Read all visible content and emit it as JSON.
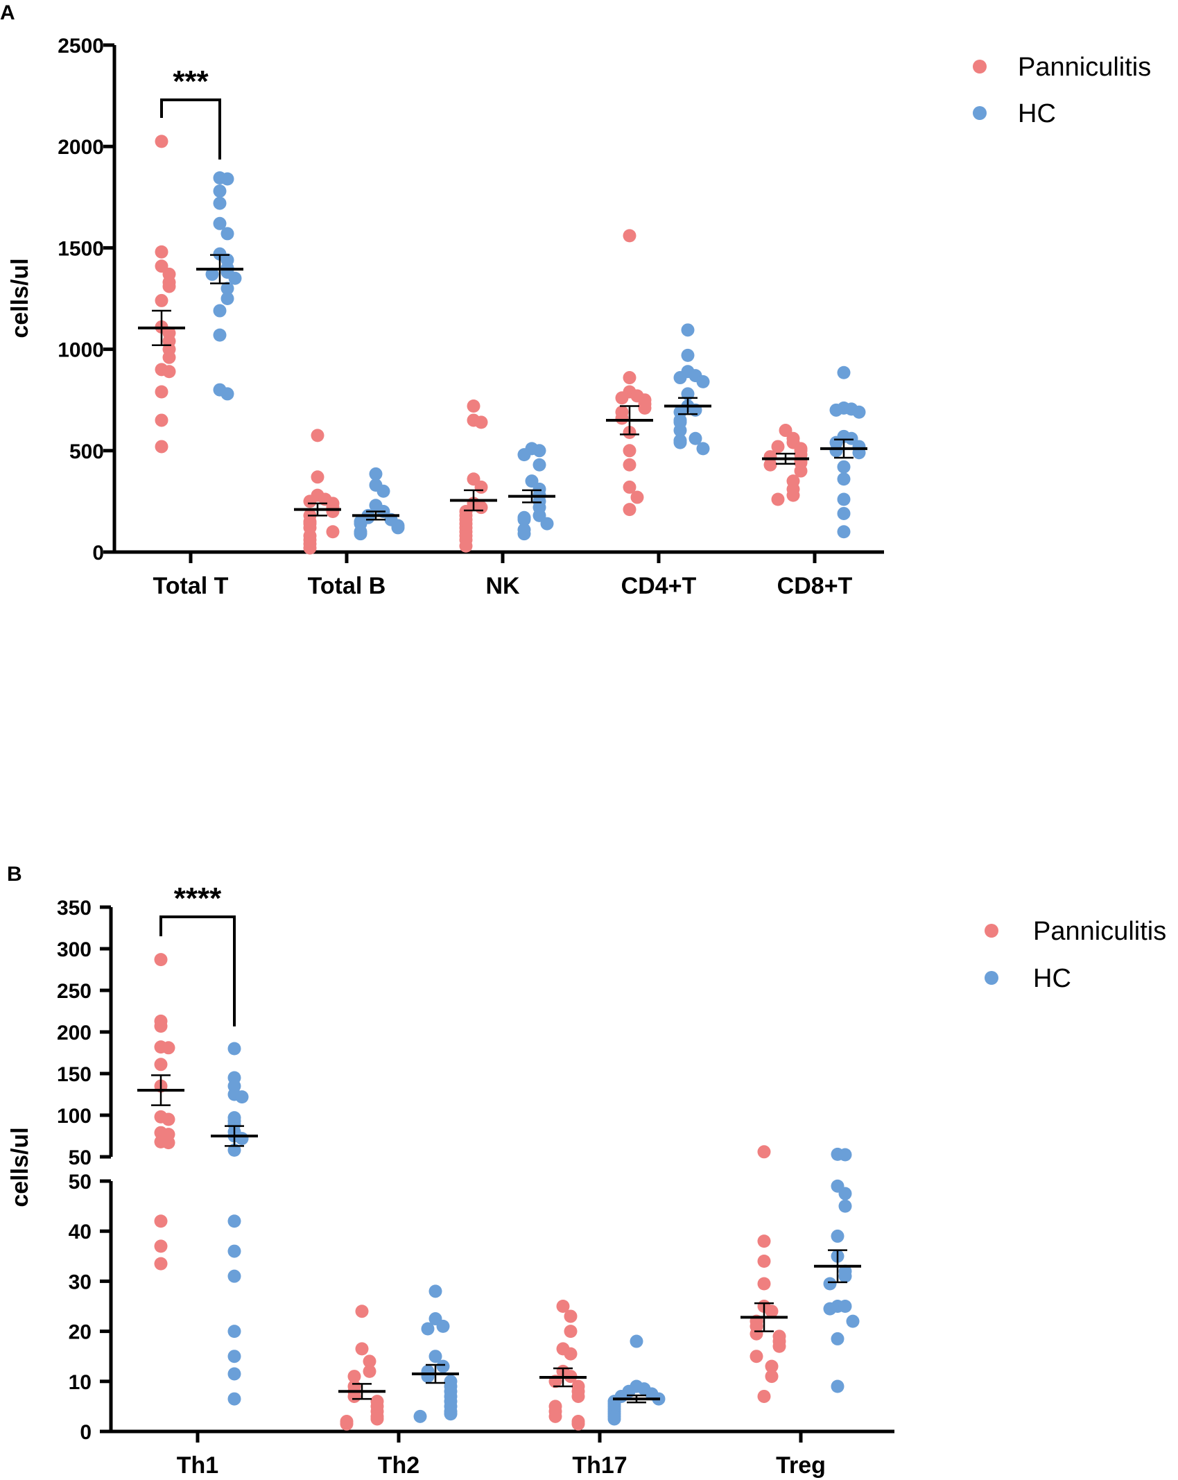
{
  "colors": {
    "panniculitis": "#ef7f7f",
    "hc": "#6a9fd8",
    "axis": "#000000"
  },
  "chart_data": [
    {
      "panel": "A",
      "type": "scatter",
      "ylabel": "cells/ul",
      "ylim": [
        0,
        2500
      ],
      "yticks": [
        0,
        500,
        1000,
        1500,
        2000,
        2500
      ],
      "categories": [
        "Total T",
        "Total B",
        "NK",
        "CD4+T",
        "CD8+T"
      ],
      "legend": {
        "position": "top-right",
        "entries": [
          "Panniculitis",
          "HC"
        ]
      },
      "significance": [
        {
          "category": "Total T",
          "label": "***"
        }
      ],
      "series": [
        {
          "name": "Panniculitis",
          "mean": [
            1105,
            210,
            255,
            650,
            460
          ],
          "sem": [
            85,
            30,
            50,
            70,
            25
          ],
          "values": [
            [
              2025,
              1480,
              1410,
              1370,
              1330,
              1310,
              1240,
              1110,
              1080,
              1040,
              1000,
              960,
              900,
              890,
              790,
              650,
              520
            ],
            [
              575,
              370,
              280,
              260,
              250,
              240,
              220,
              200,
              180,
              150,
              140,
              120,
              100,
              80,
              60,
              40,
              20
            ],
            [
              720,
              650,
              640,
              360,
              320,
              240,
              220,
              200,
              180,
              160,
              140,
              120,
              100,
              80,
              60,
              30
            ],
            [
              1560,
              860,
              790,
              770,
              760,
              750,
              730,
              710,
              690,
              660,
              590,
              500,
              430,
              320,
              270,
              210
            ],
            [
              600,
              560,
              540,
              520,
              510,
              500,
              480,
              470,
              450,
              440,
              430,
              400,
              350,
              310,
              280,
              260
            ]
          ]
        },
        {
          "name": "HC",
          "mean": [
            1395,
            180,
            275,
            720,
            510
          ],
          "sem": [
            70,
            20,
            30,
            40,
            45
          ],
          "values": [
            [
              1845,
              1840,
              1780,
              1720,
              1620,
              1570,
              1470,
              1440,
              1400,
              1380,
              1370,
              1350,
              1300,
              1250,
              1190,
              1070,
              800,
              780
            ],
            [
              385,
              330,
              300,
              230,
              200,
              180,
              170,
              160,
              150,
              140,
              130,
              120,
              100,
              90
            ],
            [
              510,
              500,
              480,
              430,
              350,
              310,
              280,
              250,
              220,
              180,
              170,
              160,
              140,
              110,
              90
            ],
            [
              1095,
              970,
              890,
              870,
              860,
              840,
              780,
              720,
              700,
              690,
              650,
              640,
              600,
              560,
              550,
              540,
              510
            ],
            [
              885,
              710,
              705,
              700,
              690,
              570,
              560,
              540,
              520,
              500,
              490,
              420,
              360,
              260,
              190,
              100
            ]
          ]
        }
      ]
    },
    {
      "panel": "B",
      "type": "scatter",
      "ylabel": "cells/ul",
      "axis_break": [
        50,
        50
      ],
      "ylim_lower": [
        0,
        50
      ],
      "ylim_upper": [
        50,
        350
      ],
      "yticks_lower": [
        0,
        10,
        20,
        30,
        40,
        50
      ],
      "yticks_upper": [
        50,
        100,
        150,
        200,
        250,
        300,
        350
      ],
      "categories": [
        "Th1",
        "Th2",
        "Th17",
        "Treg"
      ],
      "legend": {
        "position": "top-right",
        "entries": [
          "Panniculitis",
          "HC"
        ]
      },
      "significance": [
        {
          "category": "Th1",
          "label": "****"
        }
      ],
      "series": [
        {
          "name": "Panniculitis",
          "mean": [
            130,
            8,
            10.8,
            22.8
          ],
          "sem": [
            18,
            1.5,
            1.8,
            2.8
          ],
          "values": [
            [
              287,
              213,
              207,
              182,
              181,
              161,
              135,
              98,
              95,
              79,
              77,
              68,
              67,
              42,
              37,
              33.5
            ],
            [
              24,
              16.5,
              14,
              12,
              11,
              9,
              8,
              7,
              6,
              5,
              4,
              3,
              2.5,
              2,
              1.5
            ],
            [
              25,
              23,
              20,
              16.5,
              15.5,
              12,
              11,
              10,
              9,
              8,
              7,
              5,
              4,
              3,
              2,
              1.5
            ],
            [
              56,
              38,
              34,
              29.5,
              25,
              24,
              22,
              21,
              19.5,
              19,
              18,
              17,
              15,
              13,
              11,
              7
            ]
          ]
        },
        {
          "name": "HC",
          "mean": [
            75,
            11.5,
            6.5,
            33
          ],
          "sem": [
            12,
            1.8,
            0.7,
            3.2
          ],
          "values": [
            [
              180,
              145,
              135,
              125,
              122,
              97,
              93,
              89,
              80,
              75,
              72,
              58,
              42,
              36,
              31,
              20,
              15,
              11.5,
              6.5
            ],
            [
              28,
              22.5,
              21,
              20.5,
              15,
              13,
              12,
              11,
              10,
              9,
              8,
              7,
              6,
              5,
              4,
              3.5,
              3
            ],
            [
              18,
              9,
              8.5,
              8,
              7.5,
              7,
              6.5,
              6,
              5.5,
              5,
              4.5,
              4,
              3.5,
              3,
              2.5
            ],
            [
              53,
              52.5,
              49,
              47.5,
              45,
              39,
              35,
              32,
              31,
              29.5,
              25,
              25,
              24.5,
              22,
              18.5,
              9
            ]
          ]
        }
      ]
    }
  ]
}
